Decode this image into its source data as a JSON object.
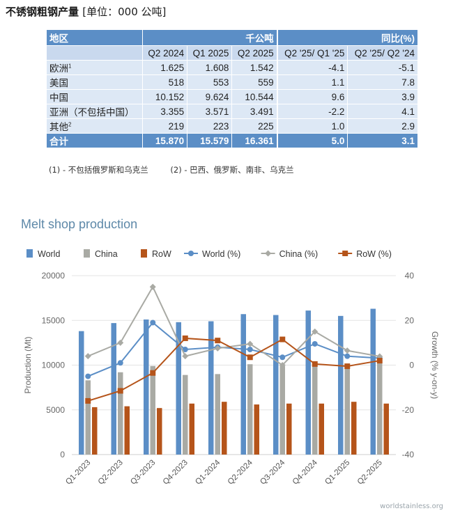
{
  "page": {
    "title": "不锈钢粗钢产量",
    "unit": "[单位：000 公吨]"
  },
  "table": {
    "header_region": "地区",
    "header_group_production": "千公吨",
    "header_group_growth": "同比(%)",
    "columns": [
      "Q2 2024",
      "Q1 2025",
      "Q2 2025",
      "Q2 '25/ Q1 '25",
      "Q2 '25/ Q2 '24"
    ],
    "rows": [
      {
        "region": "欧洲",
        "sup": "1",
        "values": [
          "1.625",
          "1.608",
          "1.542",
          "-4.1",
          "-5.1"
        ]
      },
      {
        "region": "美国",
        "sup": "",
        "values": [
          "518",
          "553",
          "559",
          "1.1",
          "7.8"
        ]
      },
      {
        "region": "中国",
        "sup": "",
        "values": [
          "10.152",
          "9.624",
          "10.544",
          "9.6",
          "3.9"
        ]
      },
      {
        "region": "亚洲（不包括中国）",
        "sup": "",
        "values": [
          "3.355",
          "3.571",
          "3.491",
          "-2.2",
          "4.1"
        ]
      },
      {
        "region": "其他",
        "sup": "2",
        "values": [
          "219",
          "223",
          "225",
          "1.0",
          "2.9"
        ]
      }
    ],
    "total": {
      "region": "合计",
      "values": [
        "15.870",
        "15.579",
        "16.361",
        "5.0",
        "3.1"
      ]
    }
  },
  "footnotes": {
    "note1": "(1) - 不包括俄罗斯和乌克兰",
    "note2": "(2) - 巴西、俄罗斯、南非、乌克兰"
  },
  "chart_data": {
    "type": "bar",
    "title": "Melt shop production",
    "ylabel": "Production (Mt)",
    "y2label": "Growth (% y-on-y)",
    "ylim": [
      0,
      20000
    ],
    "y2lim": [
      -40,
      40
    ],
    "yticks": [
      "0",
      "5000",
      "10000",
      "15000",
      "20000"
    ],
    "y2ticks": [
      "-40",
      "-20",
      "0",
      "20",
      "40"
    ],
    "categories": [
      "Q1-2023",
      "Q2-2023",
      "Q3-2023",
      "Q4-2023",
      "Q1-2024",
      "Q2-2024",
      "Q3-2024",
      "Q4-2024",
      "Q1-2025",
      "Q2-2025"
    ],
    "bar_series": [
      {
        "name": "World",
        "color": "#5b8ec6",
        "values": [
          13800,
          14700,
          15100,
          14800,
          14900,
          15700,
          15600,
          16100,
          15500,
          16300
        ]
      },
      {
        "name": "China",
        "color": "#a9aaa4",
        "values": [
          8300,
          9200,
          9900,
          8900,
          9000,
          10100,
          9900,
          10200,
          9600,
          10500
        ]
      },
      {
        "name": "RoW",
        "color": "#b5541a",
        "values": [
          5300,
          5400,
          5200,
          5700,
          5900,
          5600,
          5700,
          5700,
          5900,
          5700
        ]
      }
    ],
    "line_series": [
      {
        "name": "World (%)",
        "color": "#5b8ec6",
        "marker": "circle",
        "values": [
          -5,
          1,
          19,
          7,
          8,
          7,
          3.5,
          9.5,
          4,
          3.1
        ]
      },
      {
        "name": "China (%)",
        "color": "#a9aaa4",
        "marker": "diamond",
        "values": [
          4,
          10,
          35,
          4,
          7.5,
          9.5,
          0,
          15,
          6.5,
          3.9
        ]
      },
      {
        "name": "RoW (%)",
        "color": "#b5541a",
        "marker": "square",
        "values": [
          -16,
          -11.5,
          -3.5,
          12,
          11,
          3.5,
          11.5,
          0.5,
          -0.5,
          2
        ]
      }
    ],
    "legend_position": "top",
    "grid": true,
    "source": "worldstainless.org"
  }
}
